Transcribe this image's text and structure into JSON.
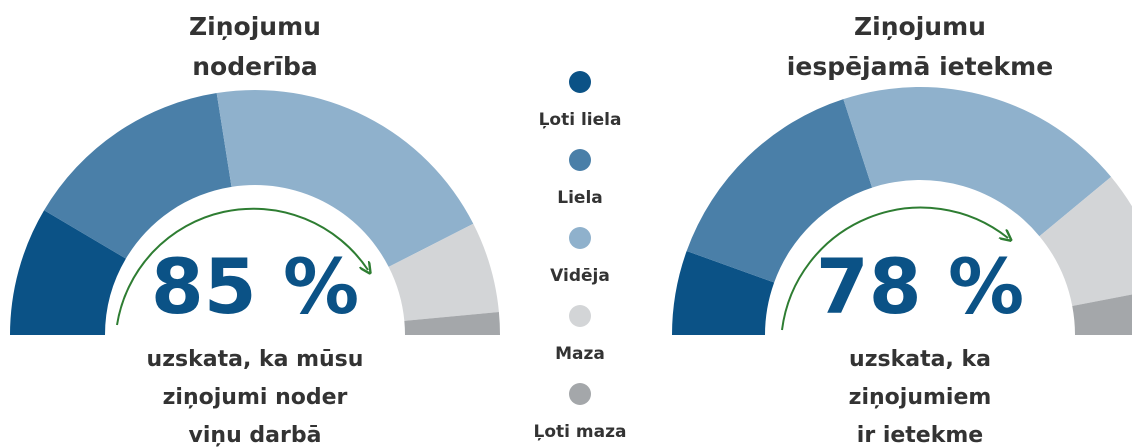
{
  "legend": {
    "categories": [
      "Ļoti liela",
      "Liela",
      "Vidēja",
      "Maza",
      "Ļoti maza"
    ],
    "colors": [
      "#0b5286",
      "#4a7fa8",
      "#8fb1cc",
      "#d3d5d7",
      "#a4a7aa"
    ]
  },
  "chart_data": [
    {
      "type": "semi-donut",
      "title": [
        "Ziņojumu",
        "noderība"
      ],
      "values": [
        17,
        28,
        40,
        12,
        3
      ],
      "headline": {
        "value": 85,
        "label": "85 %"
      },
      "caption": [
        "uzskata, ka mūsu",
        "ziņojumi noder",
        "viņu darbā"
      ]
    },
    {
      "type": "semi-donut",
      "title": [
        "Ziņojumu",
        "iespējamā ietekme"
      ],
      "values": [
        11,
        29,
        38,
        16,
        6
      ],
      "headline": {
        "value": 78,
        "label": "78 %"
      },
      "caption": [
        "uzskata, ka",
        "ziņojumiem",
        "ir ietekme"
      ]
    }
  ]
}
